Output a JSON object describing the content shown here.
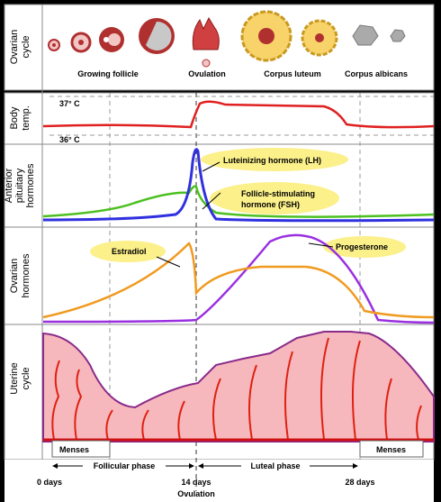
{
  "ovarian_cycle": {
    "label": [
      "Ovarian",
      "cycle"
    ],
    "stages": [
      "Growing follicle",
      "Ovulation",
      "Corpus luteum",
      "Corpus albicans"
    ]
  },
  "body_temp": {
    "label": [
      "Body",
      "temp."
    ],
    "high": "37° C",
    "low": "36° C"
  },
  "pituitary": {
    "label": [
      "Anterior",
      "pituitary",
      "hormones"
    ],
    "lh": "Luteinizing hormone (LH)",
    "fsh": [
      "Follicle-stimulating",
      "hormone (FSH)"
    ]
  },
  "ovarian_hormones": {
    "label": [
      "Ovarian",
      "hormones"
    ],
    "estradiol": "Estradiol",
    "progesterone": "Progesterone"
  },
  "uterine": {
    "label": [
      "Uterine",
      "cycle"
    ],
    "menses": [
      "Menses",
      "Menses"
    ]
  },
  "timeline": {
    "days": [
      "0 days",
      "14 days",
      "28 days"
    ],
    "ovulation": "Ovulation",
    "phases": [
      "Follicular phase",
      "Luteal phase"
    ]
  }
}
